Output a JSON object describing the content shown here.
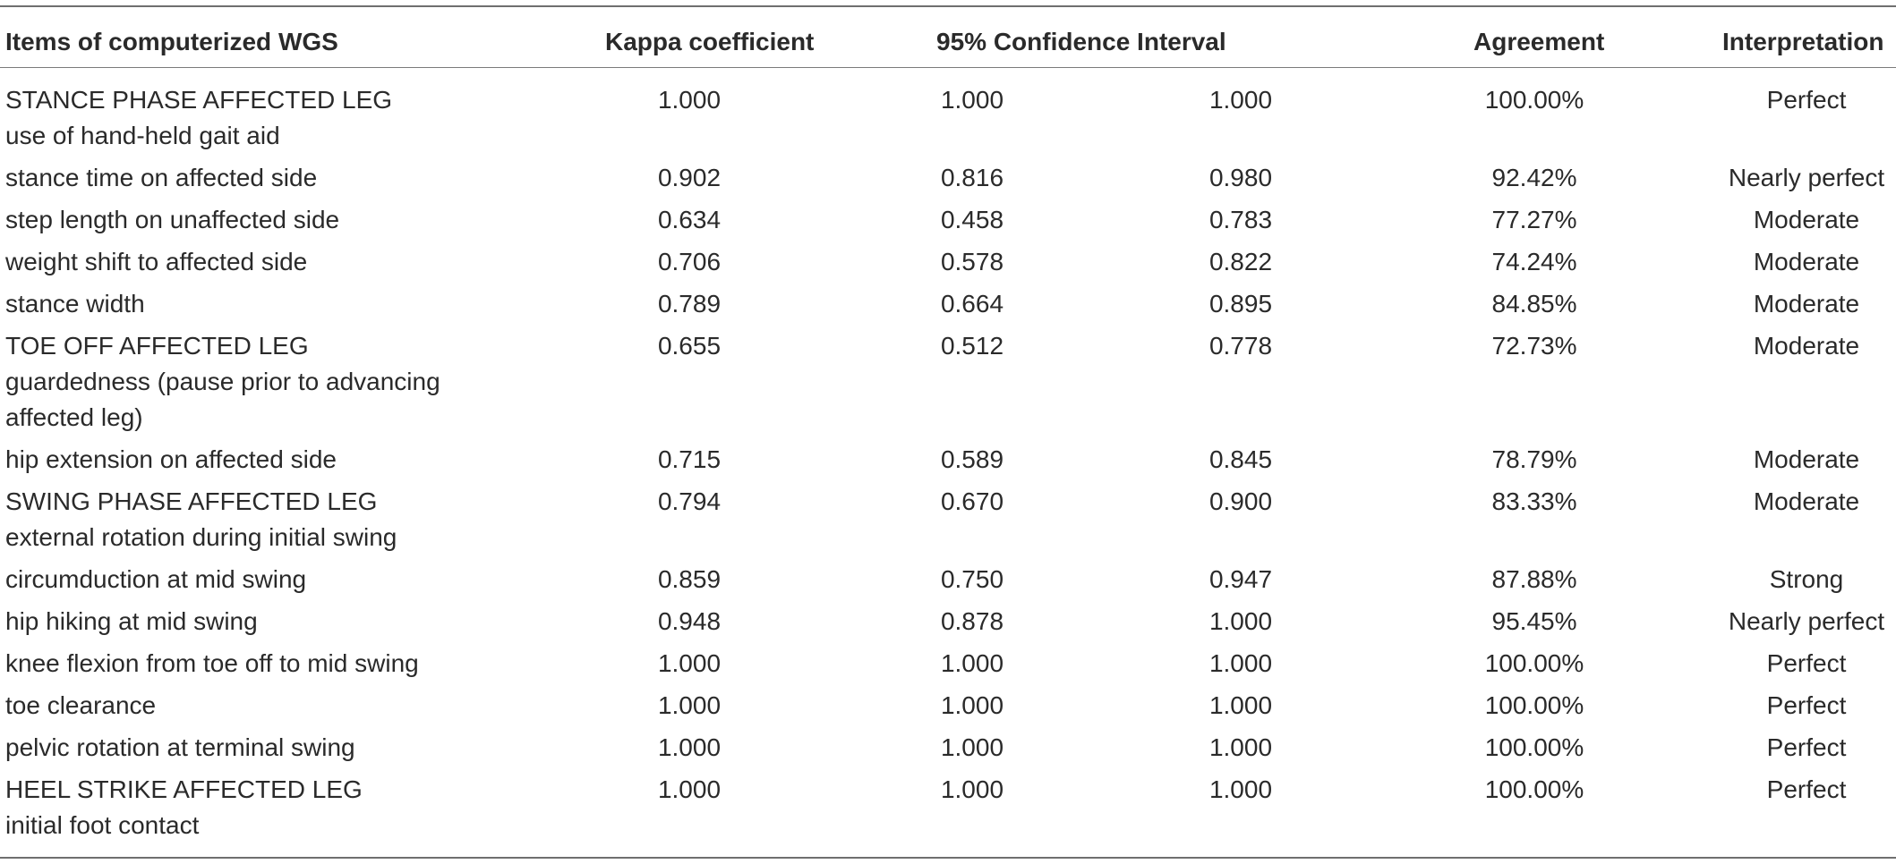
{
  "header": {
    "items": "Items of computerized WGS",
    "kappa": "Kappa coefficient",
    "ci": "95% Confidence Interval",
    "agreement": "Agreement",
    "interpretation": "Interpretation"
  },
  "rows": [
    {
      "item_line1": "STANCE PHASE AFFECTED LEG",
      "item_line2": "use of hand-held gait aid",
      "item_line3": "",
      "kappa": "1.000",
      "ci_low": "1.000",
      "ci_high": "1.000",
      "agreement": "100.00%",
      "interpretation": "Perfect"
    },
    {
      "item_line1": "stance time on affected side",
      "item_line2": "",
      "item_line3": "",
      "kappa": "0.902",
      "ci_low": "0.816",
      "ci_high": "0.980",
      "agreement": "92.42%",
      "interpretation": "Nearly perfect"
    },
    {
      "item_line1": "step length on unaffected side",
      "item_line2": "",
      "item_line3": "",
      "kappa": "0.634",
      "ci_low": "0.458",
      "ci_high": "0.783",
      "agreement": "77.27%",
      "interpretation": "Moderate"
    },
    {
      "item_line1": "weight shift to affected side",
      "item_line2": "",
      "item_line3": "",
      "kappa": "0.706",
      "ci_low": "0.578",
      "ci_high": "0.822",
      "agreement": "74.24%",
      "interpretation": "Moderate"
    },
    {
      "item_line1": "stance width",
      "item_line2": "",
      "item_line3": "",
      "kappa": "0.789",
      "ci_low": "0.664",
      "ci_high": "0.895",
      "agreement": "84.85%",
      "interpretation": "Moderate"
    },
    {
      "item_line1": "TOE OFF AFFECTED LEG",
      "item_line2": "guardedness (pause prior to advancing",
      "item_line3": "affected leg)",
      "kappa": "0.655",
      "ci_low": "0.512",
      "ci_high": "0.778",
      "agreement": "72.73%",
      "interpretation": "Moderate"
    },
    {
      "item_line1": "hip extension on affected side",
      "item_line2": "",
      "item_line3": "",
      "kappa": "0.715",
      "ci_low": "0.589",
      "ci_high": "0.845",
      "agreement": "78.79%",
      "interpretation": "Moderate"
    },
    {
      "item_line1": "SWING PHASE AFFECTED LEG",
      "item_line2": "external rotation during initial swing",
      "item_line3": "",
      "kappa": "0.794",
      "ci_low": "0.670",
      "ci_high": "0.900",
      "agreement": "83.33%",
      "interpretation": "Moderate"
    },
    {
      "item_line1": "circumduction at mid swing",
      "item_line2": "",
      "item_line3": "",
      "kappa": "0.859",
      "ci_low": "0.750",
      "ci_high": "0.947",
      "agreement": "87.88%",
      "interpretation": "Strong"
    },
    {
      "item_line1": "hip hiking at mid swing",
      "item_line2": "",
      "item_line3": "",
      "kappa": "0.948",
      "ci_low": "0.878",
      "ci_high": "1.000",
      "agreement": "95.45%",
      "interpretation": "Nearly perfect"
    },
    {
      "item_line1": "knee flexion from toe off to mid swing",
      "item_line2": "",
      "item_line3": "",
      "kappa": "1.000",
      "ci_low": "1.000",
      "ci_high": "1.000",
      "agreement": "100.00%",
      "interpretation": "Perfect"
    },
    {
      "item_line1": "toe clearance",
      "item_line2": "",
      "item_line3": "",
      "kappa": "1.000",
      "ci_low": "1.000",
      "ci_high": "1.000",
      "agreement": "100.00%",
      "interpretation": "Perfect"
    },
    {
      "item_line1": "pelvic rotation at terminal swing",
      "item_line2": "",
      "item_line3": "",
      "kappa": "1.000",
      "ci_low": "1.000",
      "ci_high": "1.000",
      "agreement": "100.00%",
      "interpretation": "Perfect"
    },
    {
      "item_line1": "HEEL STRIKE AFFECTED LEG",
      "item_line2": "initial foot contact",
      "item_line3": "",
      "kappa": "1.000",
      "ci_low": "1.000",
      "ci_high": "1.000",
      "agreement": "100.00%",
      "interpretation": "Perfect"
    }
  ]
}
